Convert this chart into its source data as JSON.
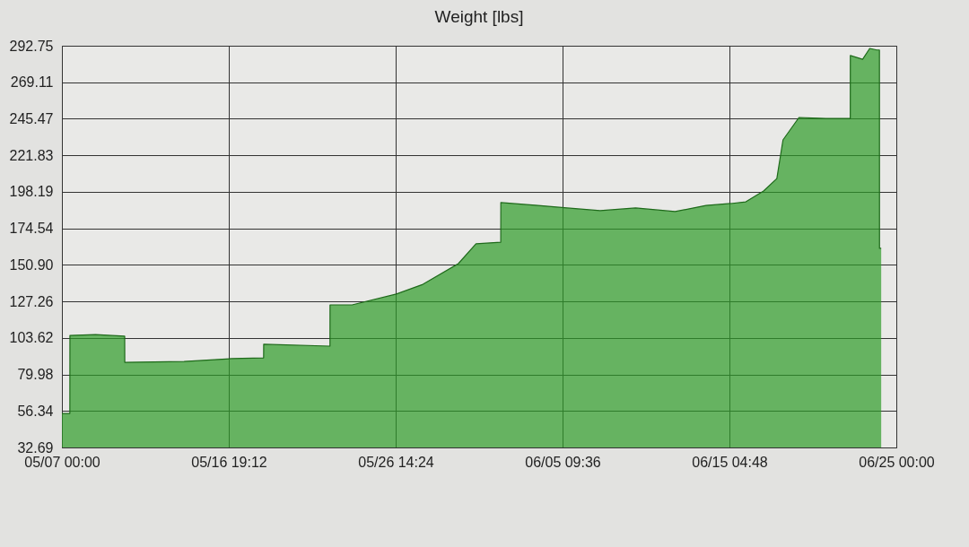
{
  "chart_data": {
    "type": "area",
    "title": "Weight [lbs]",
    "color": "#2e9b28",
    "x": [
      "--05-07T00:00",
      "--05-07T11:12",
      "--05-07T11:18",
      "--05-08T23:24",
      "--05-10T16:30",
      "--05-10T16:36",
      "--05-14T04:06",
      "--05-16T23:24",
      "--05-18T20:18",
      "--05-18T20:24",
      "--05-22T17:48",
      "--05-22T17:54",
      "--05-24T01:00",
      "--05-26T15:24",
      "--05-28T04:48",
      "--05-30T06:42",
      "--05-31T07:36",
      "--06-01T18:30",
      "--06-01T18:36",
      "--06-03T23:00",
      "--06-05T16:00",
      "--06-07T14:36",
      "--06-09T16:30",
      "--06-12T00:12",
      "--06-13T19:48",
      "--06-15T06:42",
      "--06-16T03:54",
      "--06-17T04:54",
      "--06-17T23:36",
      "--06-18T08:18",
      "--06-19T06:48",
      "--06-20T20:12",
      "--06-22T07:06",
      "--06-22T07:12",
      "--06-23T00:30",
      "--06-23T10:30",
      "--06-23T20:30",
      "--06-24T00:12",
      "--06-24T00:18",
      "--06-24T02:42"
    ],
    "values": [
      54.7,
      54.7,
      105.2,
      105.8,
      104.7,
      87.8,
      88.4,
      90.2,
      90.7,
      99.5,
      98.3,
      125.0,
      125.0,
      132.0,
      138.3,
      151.7,
      164.5,
      165.6,
      191.2,
      189.4,
      187.7,
      186.0,
      187.7,
      185.4,
      189.4,
      190.6,
      191.7,
      198.7,
      206.8,
      231.8,
      246.3,
      245.7,
      245.7,
      286.4,
      284.0,
      291.0,
      290.0,
      290.0,
      161.6,
      161.6
    ],
    "xlim": [
      "--05-07T00:00",
      "--06-25T00:00"
    ],
    "xticks": [
      {
        "value": "--05-07T00:00",
        "label": "05/07 00:00"
      },
      {
        "value": "--05-16T19:12",
        "label": "05/16 19:12"
      },
      {
        "value": "--05-26T14:24",
        "label": "05/26 14:24"
      },
      {
        "value": "--06-05T09:36",
        "label": "06/05 09:36"
      },
      {
        "value": "--06-15T04:48",
        "label": "06/15 04:48"
      },
      {
        "value": "--06-25T00:00",
        "label": "06/25 00:00"
      }
    ],
    "ylim": [
      32.69,
      292.75
    ],
    "yticks": [
      32.69,
      56.34,
      79.98,
      103.62,
      127.26,
      {
        "value": 150.9,
        "label": "150.90"
      },
      174.54,
      198.19,
      221.83,
      245.47,
      269.11,
      292.75
    ],
    "grid": true
  }
}
